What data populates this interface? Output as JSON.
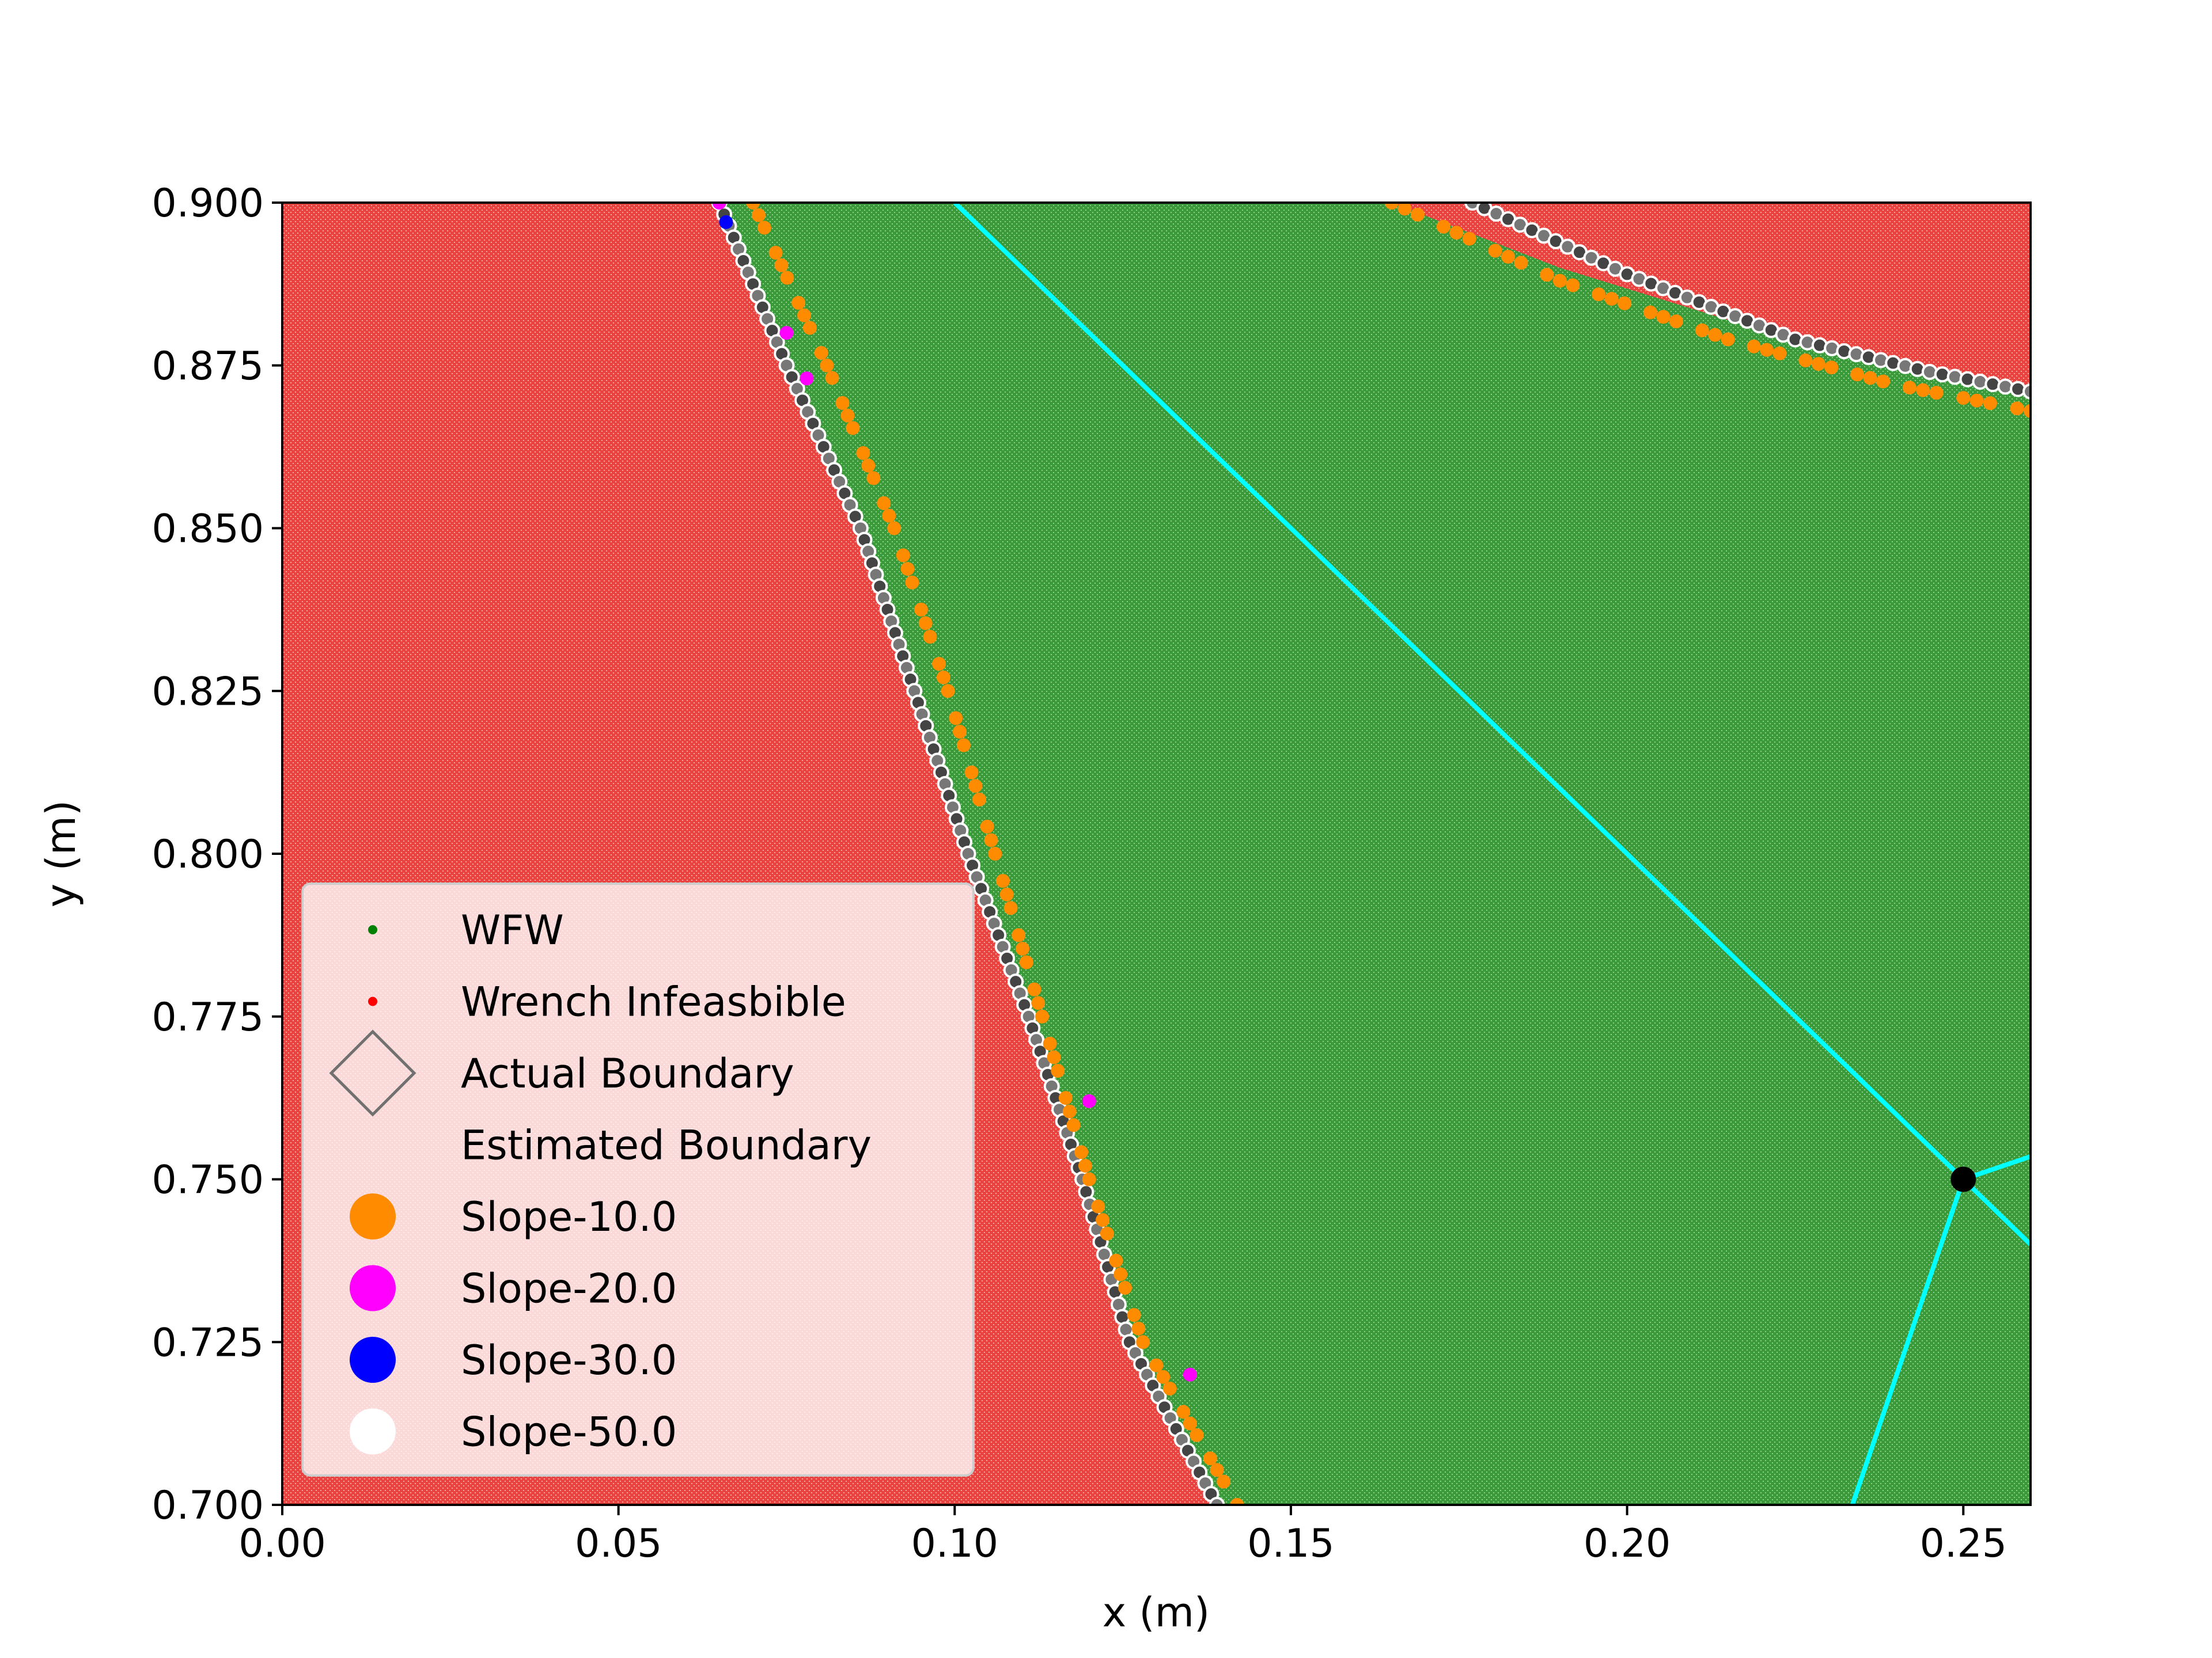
{
  "chart_data": {
    "type": "scatter",
    "title": "",
    "xlabel": "x (m)",
    "ylabel": "y (m)",
    "xlim": [
      0.0,
      0.26
    ],
    "ylim": [
      0.7,
      0.9
    ],
    "xticks": [
      "0.00",
      "0.05",
      "0.10",
      "0.15",
      "0.20",
      "0.25"
    ],
    "xtick_values": [
      0.0,
      0.05,
      0.1,
      0.15,
      0.2,
      0.25
    ],
    "yticks": [
      "0.700",
      "0.725",
      "0.750",
      "0.775",
      "0.800",
      "0.825",
      "0.850",
      "0.875",
      "0.900"
    ],
    "ytick_values": [
      0.7,
      0.725,
      0.75,
      0.775,
      0.8,
      0.825,
      0.85,
      0.875,
      0.9
    ],
    "grid": false,
    "legend_position": "lower-left",
    "legend": [
      {
        "label": "WFW",
        "marker": "small-dot",
        "color": "#008000"
      },
      {
        "label": "Wrench Infeasbible",
        "marker": "small-dot",
        "color": "#ff0000"
      },
      {
        "label": "Actual Boundary",
        "marker": "diamond-outline",
        "color": "#707070"
      },
      {
        "label": "Estimated Boundary",
        "marker": "none",
        "color": "#ffffff"
      },
      {
        "label": "Slope-10.0",
        "marker": "circle",
        "color": "#ff8c00"
      },
      {
        "label": "Slope-20.0",
        "marker": "circle",
        "color": "#ff00ff"
      },
      {
        "label": "Slope-30.0",
        "marker": "circle",
        "color": "#0000ff"
      },
      {
        "label": "Slope-50.0",
        "marker": "circle",
        "color": "#ffffff"
      }
    ],
    "colors": {
      "feasible": "#3a9a3a",
      "infeasible": "#e8433f",
      "actual_boundary": "#5a5a5a",
      "slope_10": "#ff8c00",
      "cyan_lines": "#00ffff",
      "end_point": "#000000"
    },
    "regions": {
      "left_boundary": [
        [
          0.065,
          0.9
        ],
        [
          0.075,
          0.875
        ],
        [
          0.086,
          0.85
        ],
        [
          0.094,
          0.825
        ],
        [
          0.102,
          0.8
        ],
        [
          0.111,
          0.775
        ],
        [
          0.119,
          0.75
        ],
        [
          0.126,
          0.725
        ],
        [
          0.139,
          0.7
        ]
      ],
      "top_boundary": [
        [
          0.165,
          0.9
        ],
        [
          0.19,
          0.89
        ],
        [
          0.215,
          0.882
        ],
        [
          0.24,
          0.875
        ],
        [
          0.26,
          0.871
        ]
      ]
    },
    "series": [
      {
        "name": "Actual Boundary",
        "type": "scatter",
        "points": [
          [
            0.065,
            0.9
          ],
          [
            0.075,
            0.875
          ],
          [
            0.086,
            0.85
          ],
          [
            0.094,
            0.825
          ],
          [
            0.102,
            0.8
          ],
          [
            0.111,
            0.775
          ],
          [
            0.119,
            0.75
          ],
          [
            0.126,
            0.725
          ],
          [
            0.139,
            0.7
          ]
        ]
      },
      {
        "name": "Actual Boundary",
        "type": "scatter",
        "points": [
          [
            0.177,
            0.9
          ],
          [
            0.2,
            0.889
          ],
          [
            0.225,
            0.879
          ],
          [
            0.245,
            0.874
          ],
          [
            0.26,
            0.871
          ]
        ]
      },
      {
        "name": "Slope-10.0",
        "type": "scatter",
        "points": [
          [
            0.07,
            0.9
          ],
          [
            0.081,
            0.875
          ],
          [
            0.091,
            0.85
          ],
          [
            0.099,
            0.825
          ],
          [
            0.106,
            0.8
          ],
          [
            0.113,
            0.775
          ],
          [
            0.12,
            0.75
          ],
          [
            0.128,
            0.725
          ],
          [
            0.142,
            0.7
          ]
        ]
      },
      {
        "name": "Slope-10.0",
        "type": "scatter",
        "points": [
          [
            0.165,
            0.9
          ],
          [
            0.19,
            0.888
          ],
          [
            0.215,
            0.879
          ],
          [
            0.24,
            0.872
          ],
          [
            0.26,
            0.868
          ]
        ]
      },
      {
        "name": "Slope-20.0",
        "type": "scatter",
        "points": [
          [
            0.065,
            0.9
          ],
          [
            0.075,
            0.88
          ],
          [
            0.078,
            0.873
          ],
          [
            0.12,
            0.762
          ],
          [
            0.135,
            0.72
          ]
        ]
      },
      {
        "name": "Slope-30.0",
        "type": "scatter",
        "points": [
          [
            0.066,
            0.897
          ]
        ]
      },
      {
        "name": "cyan_line_1",
        "type": "line",
        "points": [
          [
            0.1,
            0.9
          ],
          [
            0.25,
            0.75
          ],
          [
            0.26,
            0.74
          ]
        ]
      },
      {
        "name": "cyan_line_2",
        "type": "line",
        "points": [
          [
            0.2335,
            0.7
          ],
          [
            0.25,
            0.75
          ],
          [
            0.26,
            0.7535
          ]
        ]
      },
      {
        "name": "end_point",
        "type": "scatter",
        "points": [
          [
            0.25,
            0.75
          ]
        ]
      }
    ]
  }
}
